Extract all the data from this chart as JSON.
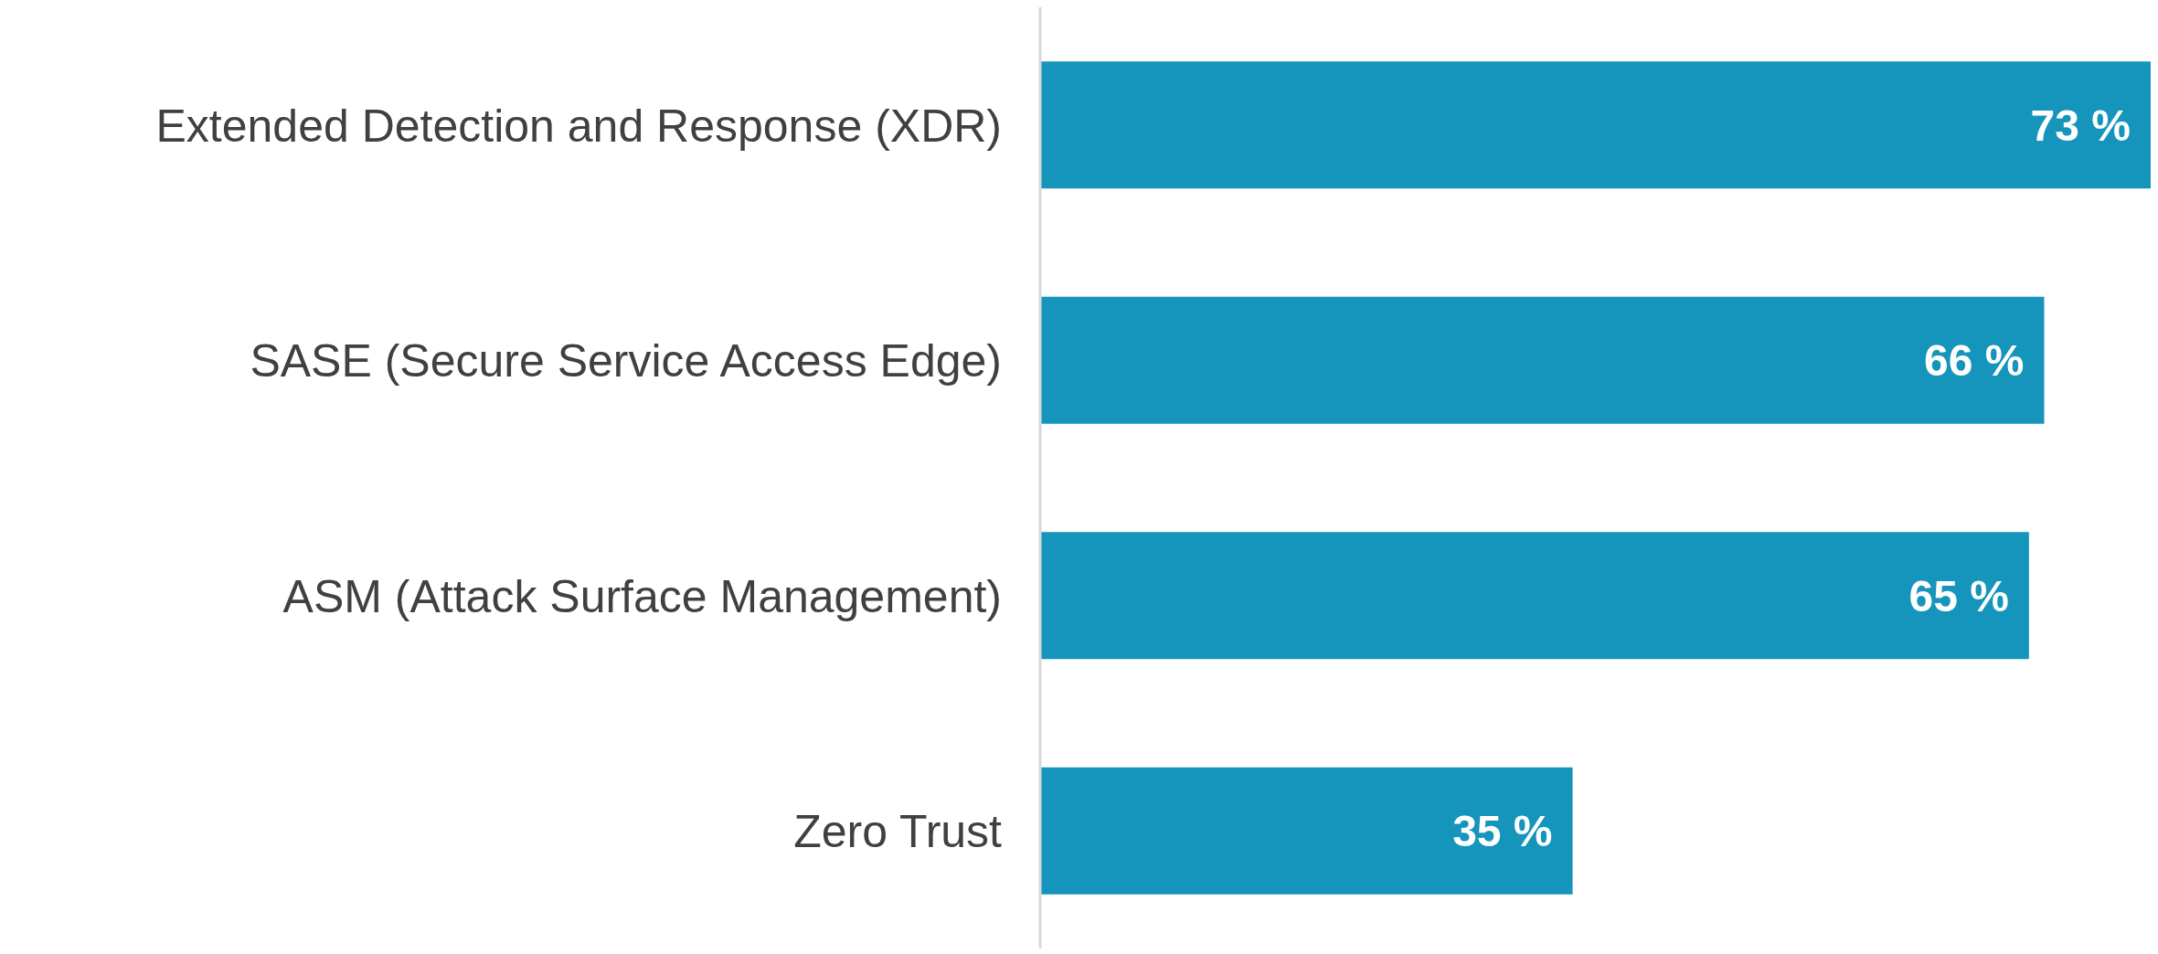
{
  "chart_data": {
    "type": "bar",
    "orientation": "horizontal",
    "tick_labels": "y",
    "categories": [
      "Extended Detection and Response (XDR)",
      "SASE (Secure Service Access Edge)",
      "ASM (Attack Surface Management)",
      "Zero Trust"
    ],
    "values": [
      73,
      66,
      65,
      35
    ],
    "value_labels": [
      "73 %",
      "66 %",
      "65 %",
      "35 %"
    ],
    "color": "#1595bb",
    "grid": false
  }
}
